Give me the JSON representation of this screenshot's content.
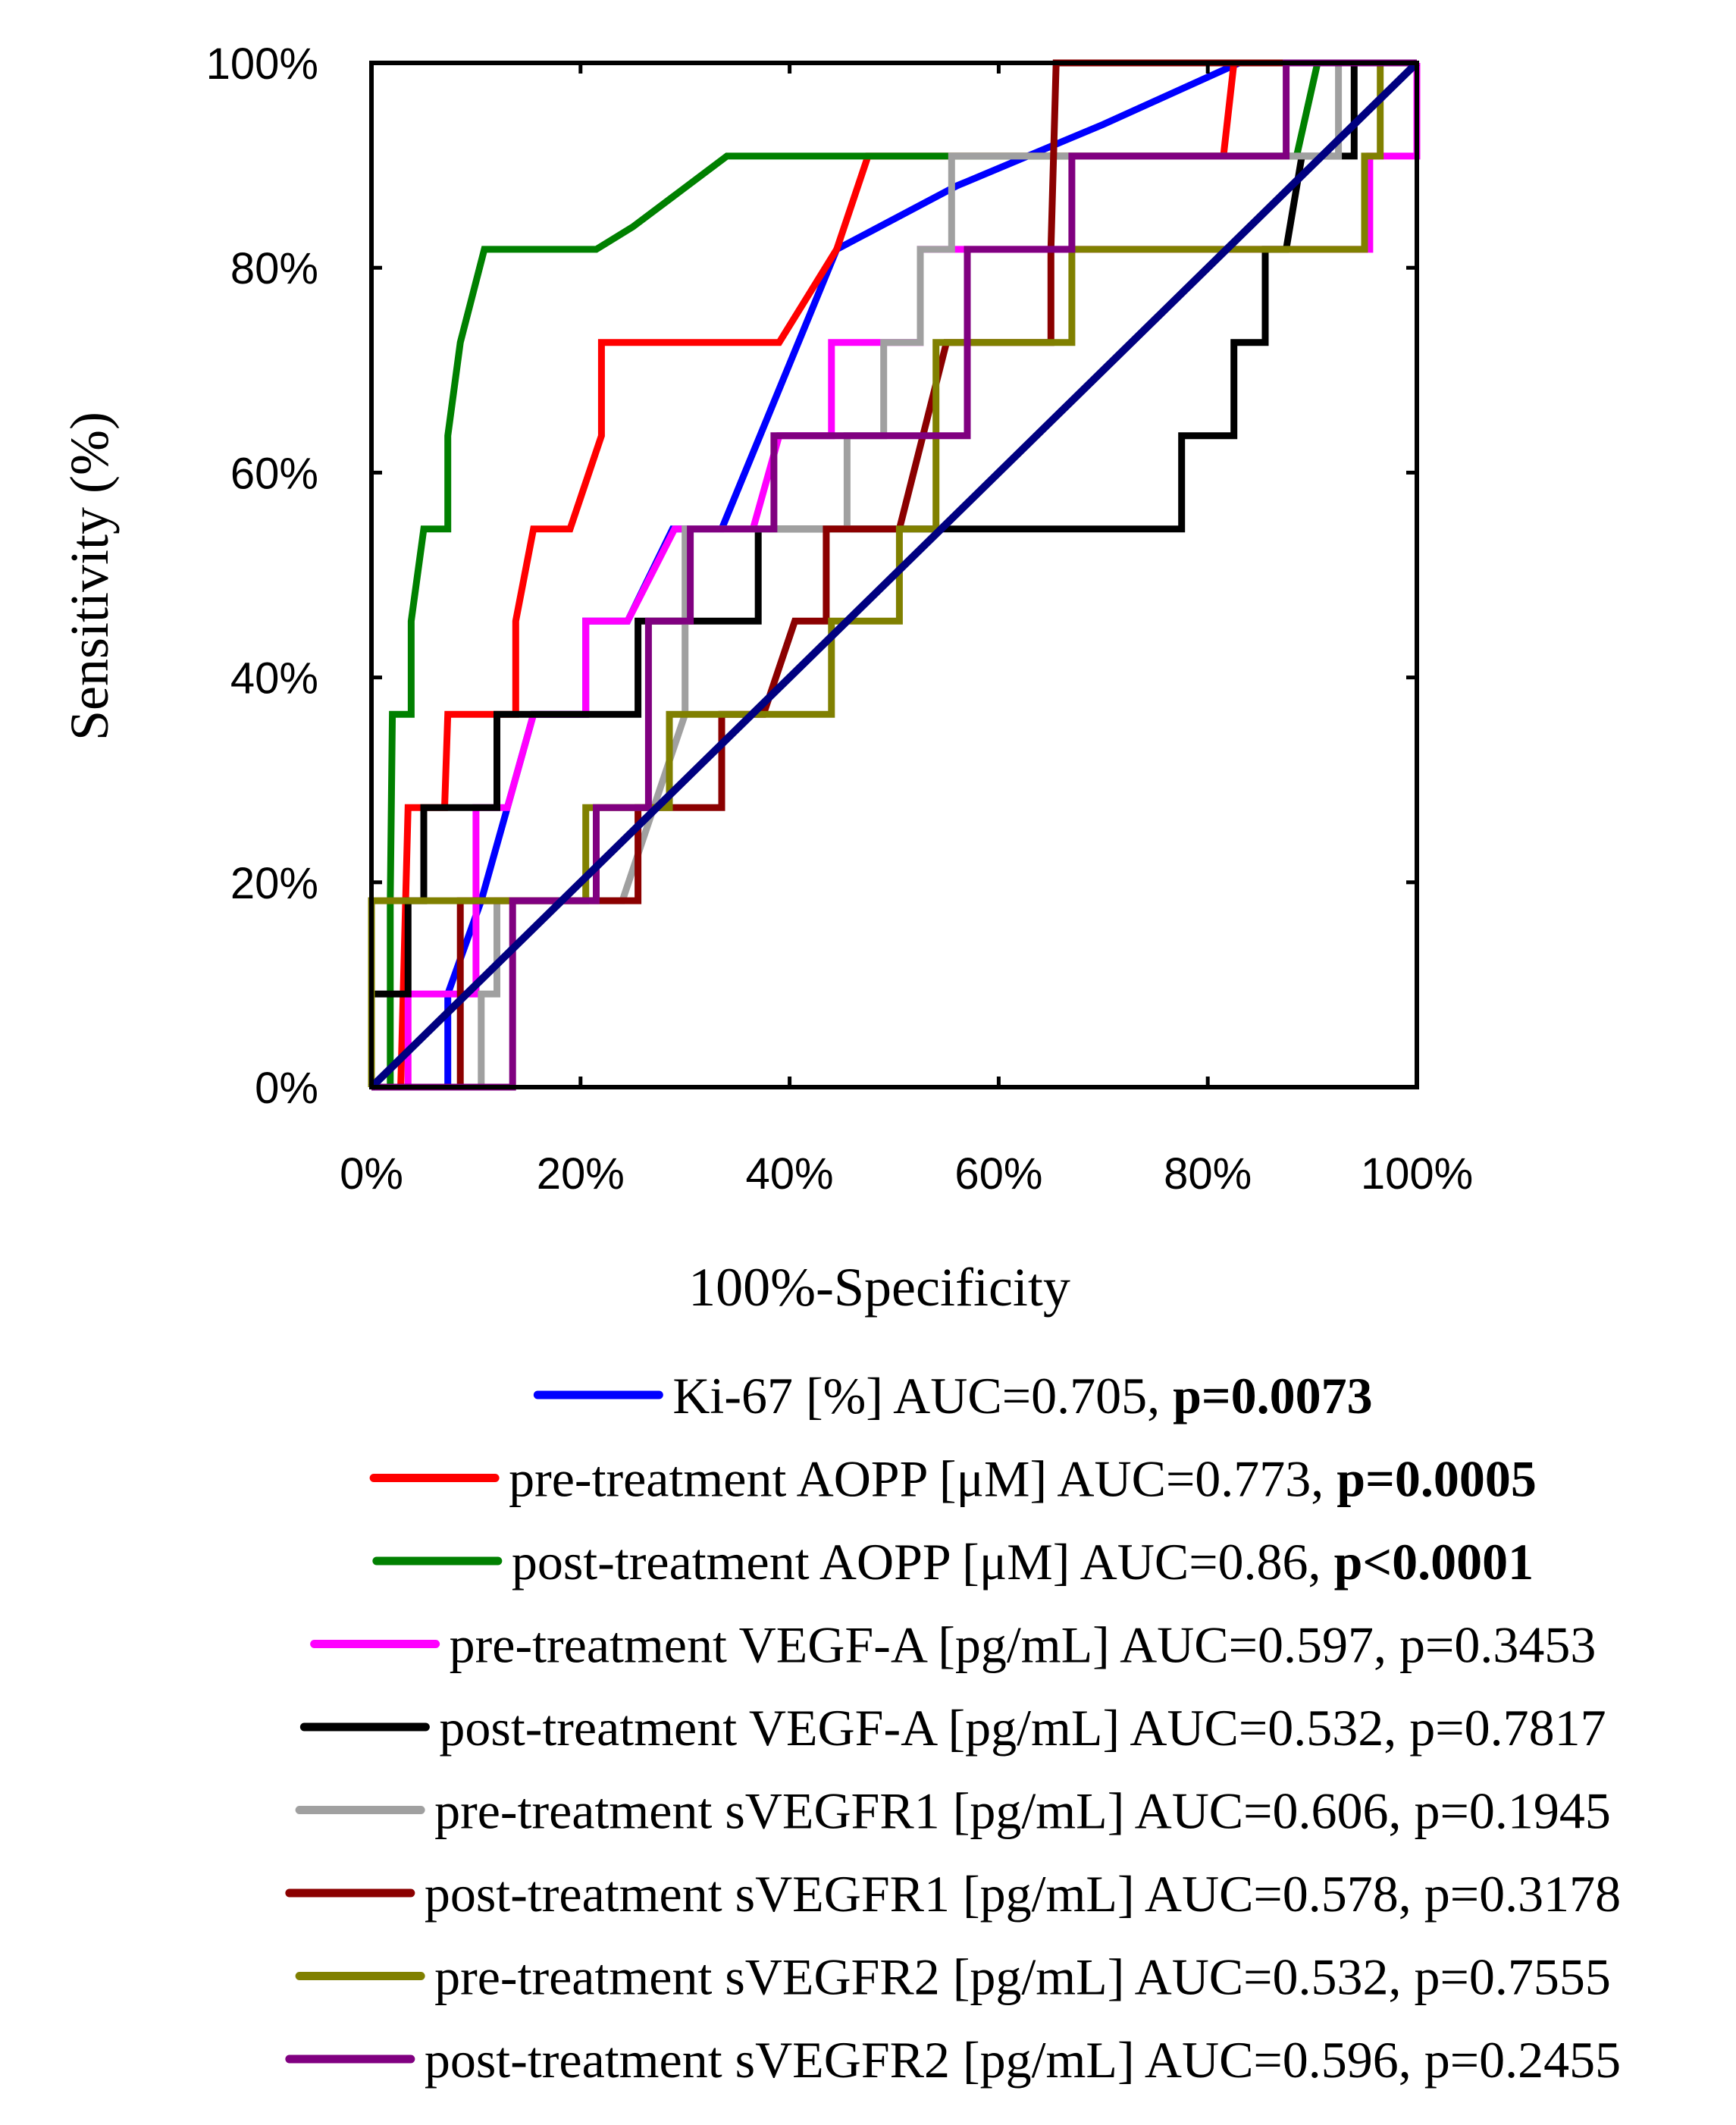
{
  "chart_data": {
    "type": "line",
    "title": "",
    "xlabel": "100%-Specificity",
    "ylabel": "Sensitivity (%)",
    "xlim": [
      0,
      100
    ],
    "ylim": [
      0,
      100
    ],
    "x_ticks": [
      "0%",
      "20%",
      "40%",
      "60%",
      "80%",
      "100%"
    ],
    "y_ticks": [
      "0%",
      "20%",
      "40%",
      "60%",
      "80%",
      "100%"
    ],
    "grid": false,
    "legend_position": "bottom",
    "series": [
      {
        "id": "ki67",
        "label_main": "Ki-67 [%] AUC=0.705, ",
        "label_p": "p=0.0073",
        "p_bold": true,
        "color": "#0000ff",
        "points": [
          [
            0,
            0
          ],
          [
            7.3,
            0
          ],
          [
            7.3,
            9.1
          ],
          [
            10.5,
            18.2
          ],
          [
            13,
            27.3
          ],
          [
            15.5,
            36.4
          ],
          [
            20.5,
            36.4
          ],
          [
            20.5,
            45.5
          ],
          [
            24.5,
            45.5
          ],
          [
            28.8,
            54.5
          ],
          [
            33.5,
            54.5
          ],
          [
            44.5,
            81.8
          ],
          [
            56,
            88
          ],
          [
            70,
            94
          ],
          [
            83,
            100
          ],
          [
            100,
            100
          ]
        ]
      },
      {
        "id": "pre_aopp",
        "label_main": "pre-treatment AOPP [μM] AUC=0.773, ",
        "label_p": "p=0.0005",
        "p_bold": true,
        "color": "#ff0000",
        "points": [
          [
            0,
            0
          ],
          [
            2.8,
            0
          ],
          [
            3.5,
            27.3
          ],
          [
            7,
            27.3
          ],
          [
            7.3,
            36.4
          ],
          [
            13.8,
            36.4
          ],
          [
            13.8,
            45.5
          ],
          [
            15.5,
            54.5
          ],
          [
            19,
            54.5
          ],
          [
            22,
            63.6
          ],
          [
            22,
            72.7
          ],
          [
            39,
            72.7
          ],
          [
            44.5,
            81.8
          ],
          [
            47.5,
            90.9
          ],
          [
            53,
            90.9
          ],
          [
            81.5,
            90.9
          ],
          [
            82.5,
            100
          ],
          [
            100,
            100
          ]
        ]
      },
      {
        "id": "post_aopp",
        "label_main": "post-treatment AOPP [μM] AUC=0.86, ",
        "label_p": "p<0.0001",
        "p_bold": true,
        "color": "#008000",
        "points": [
          [
            0,
            0
          ],
          [
            1.8,
            0
          ],
          [
            1.8,
            18.2
          ],
          [
            2,
            36.4
          ],
          [
            3.8,
            36.4
          ],
          [
            3.8,
            45.5
          ],
          [
            5,
            54.5
          ],
          [
            7.3,
            54.5
          ],
          [
            7.3,
            63.6
          ],
          [
            8.5,
            72.7
          ],
          [
            10.8,
            81.8
          ],
          [
            21.5,
            81.8
          ],
          [
            25,
            84
          ],
          [
            34,
            90.9
          ],
          [
            88.5,
            90.9
          ],
          [
            90.5,
            100
          ],
          [
            100,
            100
          ]
        ]
      },
      {
        "id": "pre_vegfa",
        "label_main": "pre-treatment VEGF-A [pg/mL] AUC=0.597, ",
        "label_p": "p=0.3453",
        "p_bold": false,
        "color": "#ff00ff",
        "points": [
          [
            0,
            0
          ],
          [
            3.5,
            0
          ],
          [
            3.5,
            9.1
          ],
          [
            10,
            9.1
          ],
          [
            10,
            27.3
          ],
          [
            13,
            27.3
          ],
          [
            15.5,
            36.4
          ],
          [
            20.5,
            36.4
          ],
          [
            20.5,
            45.5
          ],
          [
            24.5,
            45.5
          ],
          [
            29,
            54.5
          ],
          [
            36.5,
            54.5
          ],
          [
            39,
            63.6
          ],
          [
            44,
            63.6
          ],
          [
            44,
            72.7
          ],
          [
            52.5,
            72.7
          ],
          [
            52.5,
            81.8
          ],
          [
            95.5,
            81.8
          ],
          [
            95.5,
            90.9
          ],
          [
            100,
            90.9
          ],
          [
            100,
            100
          ]
        ]
      },
      {
        "id": "post_vegfa",
        "label_main": "post-treatment VEGF-A [pg/mL] AUC=0.532, ",
        "label_p": "p=0.7817",
        "p_bold": false,
        "color": "#000000",
        "points": [
          [
            0,
            0
          ],
          [
            0,
            9.1
          ],
          [
            3.5,
            9.1
          ],
          [
            3.5,
            18.2
          ],
          [
            5,
            18.2
          ],
          [
            5,
            27.3
          ],
          [
            12,
            27.3
          ],
          [
            12,
            36.4
          ],
          [
            25.5,
            36.4
          ],
          [
            25.5,
            45.5
          ],
          [
            37,
            45.5
          ],
          [
            37,
            54.5
          ],
          [
            77.5,
            54.5
          ],
          [
            77.5,
            63.6
          ],
          [
            82.5,
            63.6
          ],
          [
            82.5,
            72.7
          ],
          [
            85.5,
            72.7
          ],
          [
            85.5,
            81.8
          ],
          [
            87.5,
            81.8
          ],
          [
            89,
            90.9
          ],
          [
            94,
            90.9
          ],
          [
            94,
            100
          ],
          [
            100,
            100
          ]
        ]
      },
      {
        "id": "pre_svegfr1",
        "label_main": "pre-treatment sVEGFR1 [pg/mL] AUC=0.606, ",
        "label_p": "p=0.1945",
        "p_bold": false,
        "color": "#a0a0a0",
        "points": [
          [
            0,
            0
          ],
          [
            10.5,
            0
          ],
          [
            10.5,
            9.1
          ],
          [
            12,
            9.1
          ],
          [
            12,
            18.2
          ],
          [
            24,
            18.2
          ],
          [
            27,
            27.3
          ],
          [
            30,
            36.4
          ],
          [
            30,
            54.5
          ],
          [
            45.5,
            54.5
          ],
          [
            45.5,
            63.6
          ],
          [
            49,
            63.6
          ],
          [
            49,
            72.7
          ],
          [
            52.5,
            72.7
          ],
          [
            52.5,
            81.8
          ],
          [
            55.5,
            81.8
          ],
          [
            55.5,
            90.9
          ],
          [
            92.5,
            90.9
          ],
          [
            92.5,
            100
          ],
          [
            100,
            100
          ]
        ]
      },
      {
        "id": "post_svegfr1",
        "label_main": "post-treatment sVEGFR1 [pg/mL] AUC=0.578, ",
        "label_p": "p=0.3178",
        "p_bold": false,
        "color": "#8b0000",
        "points": [
          [
            0,
            0
          ],
          [
            8.5,
            0
          ],
          [
            8.5,
            18.2
          ],
          [
            25.5,
            18.2
          ],
          [
            25.5,
            27.3
          ],
          [
            33.5,
            27.3
          ],
          [
            33.5,
            36.4
          ],
          [
            37.5,
            36.4
          ],
          [
            40.5,
            45.5
          ],
          [
            43.5,
            45.5
          ],
          [
            43.5,
            54.5
          ],
          [
            50.5,
            54.5
          ],
          [
            55,
            72.7
          ],
          [
            65,
            72.7
          ],
          [
            65,
            81.8
          ],
          [
            65.5,
            100
          ],
          [
            100,
            100
          ]
        ]
      },
      {
        "id": "pre_svegfr2",
        "label_main": "pre-treatment sVEGFR2 [pg/mL] AUC=0.532, ",
        "label_p": "p=0.7555",
        "p_bold": false,
        "color": "#808000",
        "points": [
          [
            0,
            0
          ],
          [
            0,
            18.2
          ],
          [
            20.5,
            18.2
          ],
          [
            20.5,
            27.3
          ],
          [
            28.5,
            27.3
          ],
          [
            28.5,
            36.4
          ],
          [
            44,
            36.4
          ],
          [
            44,
            45.5
          ],
          [
            50.5,
            45.5
          ],
          [
            50.5,
            54.5
          ],
          [
            54,
            54.5
          ],
          [
            54,
            72.7
          ],
          [
            67,
            72.7
          ],
          [
            67,
            81.8
          ],
          [
            95,
            81.8
          ],
          [
            95,
            90.9
          ],
          [
            96.5,
            90.9
          ],
          [
            96.5,
            100
          ],
          [
            100,
            100
          ]
        ]
      },
      {
        "id": "post_svegfr2",
        "label_main": "post-treatment sVEGFR2 [pg/mL] AUC=0.596, ",
        "label_p": "p=0.2455",
        "p_bold": false,
        "color": "#800080",
        "points": [
          [
            0,
            0
          ],
          [
            13.5,
            0
          ],
          [
            13.5,
            18.2
          ],
          [
            21.5,
            18.2
          ],
          [
            21.5,
            27.3
          ],
          [
            26.5,
            27.3
          ],
          [
            26.5,
            45.5
          ],
          [
            30.5,
            45.5
          ],
          [
            30.5,
            54.5
          ],
          [
            38.5,
            54.5
          ],
          [
            38.5,
            63.6
          ],
          [
            57,
            63.6
          ],
          [
            57,
            81.8
          ],
          [
            67,
            81.8
          ],
          [
            67,
            90.9
          ],
          [
            87.5,
            90.9
          ],
          [
            87.5,
            100
          ],
          [
            100,
            100
          ]
        ]
      },
      {
        "id": "reference",
        "label_main": "",
        "label_p": "",
        "p_bold": false,
        "color": "#000080",
        "in_legend": false,
        "points": [
          [
            0,
            0
          ],
          [
            100,
            100
          ]
        ]
      }
    ]
  }
}
